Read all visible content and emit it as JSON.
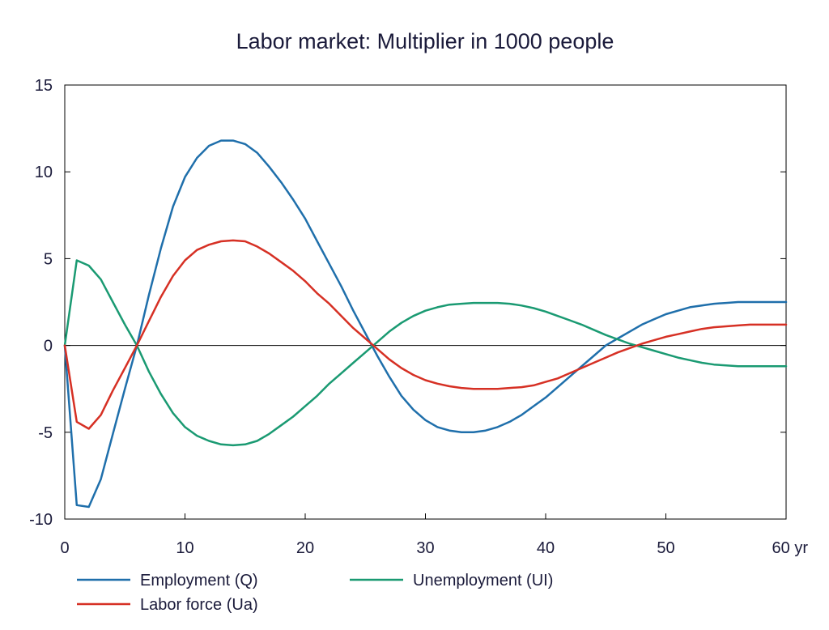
{
  "chart_data": {
    "type": "line",
    "title": "Labor market: Multiplier in 1000 people",
    "xlabel": "",
    "ylabel": "",
    "x_unit": "yr",
    "xlim": [
      0,
      60
    ],
    "ylim": [
      -10,
      15
    ],
    "x_ticks": [
      0,
      10,
      20,
      30,
      40,
      50,
      60
    ],
    "x_tick_labels": [
      "0",
      "10",
      "20",
      "30",
      "40",
      "50",
      "60 yr"
    ],
    "y_ticks": [
      -10,
      -5,
      0,
      5,
      10,
      15
    ],
    "y_tick_labels": [
      "-10",
      "-5",
      "0",
      "5",
      "10",
      "15"
    ],
    "grid": false,
    "legend_position": "bottom",
    "x": [
      0,
      1,
      2,
      3,
      4,
      5,
      6,
      7,
      8,
      9,
      10,
      11,
      12,
      13,
      14,
      15,
      16,
      17,
      18,
      19,
      20,
      21,
      22,
      23,
      24,
      25,
      26,
      27,
      28,
      29,
      30,
      31,
      32,
      33,
      34,
      35,
      36,
      37,
      38,
      39,
      40,
      41,
      42,
      43,
      44,
      45,
      46,
      47,
      48,
      49,
      50,
      51,
      52,
      53,
      54,
      55,
      56,
      57,
      58,
      59,
      60
    ],
    "series": [
      {
        "name": "Employment (Q)",
        "color": "#1f6fab",
        "values": [
          0,
          -9.2,
          -9.3,
          -7.7,
          -5.1,
          -2.5,
          0,
          2.9,
          5.6,
          8.0,
          9.7,
          10.8,
          11.5,
          11.8,
          11.8,
          11.6,
          11.1,
          10.3,
          9.4,
          8.4,
          7.3,
          6.0,
          4.7,
          3.4,
          2.0,
          0.7,
          -0.6,
          -1.8,
          -2.9,
          -3.7,
          -4.3,
          -4.7,
          -4.9,
          -5.0,
          -5.0,
          -4.9,
          -4.7,
          -4.4,
          -4.0,
          -3.5,
          -3.0,
          -2.4,
          -1.8,
          -1.2,
          -0.6,
          0.0,
          0.4,
          0.8,
          1.2,
          1.5,
          1.8,
          2.0,
          2.2,
          2.3,
          2.4,
          2.45,
          2.5,
          2.5,
          2.5,
          2.5,
          2.5
        ]
      },
      {
        "name": "Unemployment (UI)",
        "color": "#1a9a72",
        "values": [
          0,
          4.9,
          4.6,
          3.8,
          2.5,
          1.2,
          0,
          -1.5,
          -2.8,
          -3.9,
          -4.7,
          -5.2,
          -5.5,
          -5.7,
          -5.75,
          -5.7,
          -5.5,
          -5.1,
          -4.6,
          -4.1,
          -3.5,
          -2.9,
          -2.2,
          -1.6,
          -1.0,
          -0.4,
          0.2,
          0.8,
          1.3,
          1.7,
          2.0,
          2.2,
          2.35,
          2.4,
          2.45,
          2.45,
          2.45,
          2.4,
          2.3,
          2.15,
          1.95,
          1.7,
          1.45,
          1.2,
          0.9,
          0.6,
          0.35,
          0.1,
          -0.1,
          -0.3,
          -0.5,
          -0.7,
          -0.85,
          -1.0,
          -1.1,
          -1.15,
          -1.2,
          -1.2,
          -1.2,
          -1.2,
          -1.2
        ]
      },
      {
        "name": "Labor force (Ua)",
        "color": "#d63024",
        "values": [
          0,
          -4.4,
          -4.8,
          -4.0,
          -2.6,
          -1.3,
          0,
          1.4,
          2.8,
          4.0,
          4.9,
          5.5,
          5.8,
          6.0,
          6.05,
          6.0,
          5.7,
          5.3,
          4.8,
          4.3,
          3.7,
          3.0,
          2.4,
          1.7,
          1.0,
          0.4,
          -0.2,
          -0.8,
          -1.3,
          -1.7,
          -2.0,
          -2.2,
          -2.35,
          -2.45,
          -2.5,
          -2.5,
          -2.5,
          -2.45,
          -2.4,
          -2.3,
          -2.1,
          -1.9,
          -1.6,
          -1.3,
          -1.0,
          -0.7,
          -0.4,
          -0.15,
          0.1,
          0.3,
          0.5,
          0.65,
          0.8,
          0.95,
          1.05,
          1.1,
          1.15,
          1.2,
          1.2,
          1.2,
          1.2
        ]
      }
    ]
  }
}
